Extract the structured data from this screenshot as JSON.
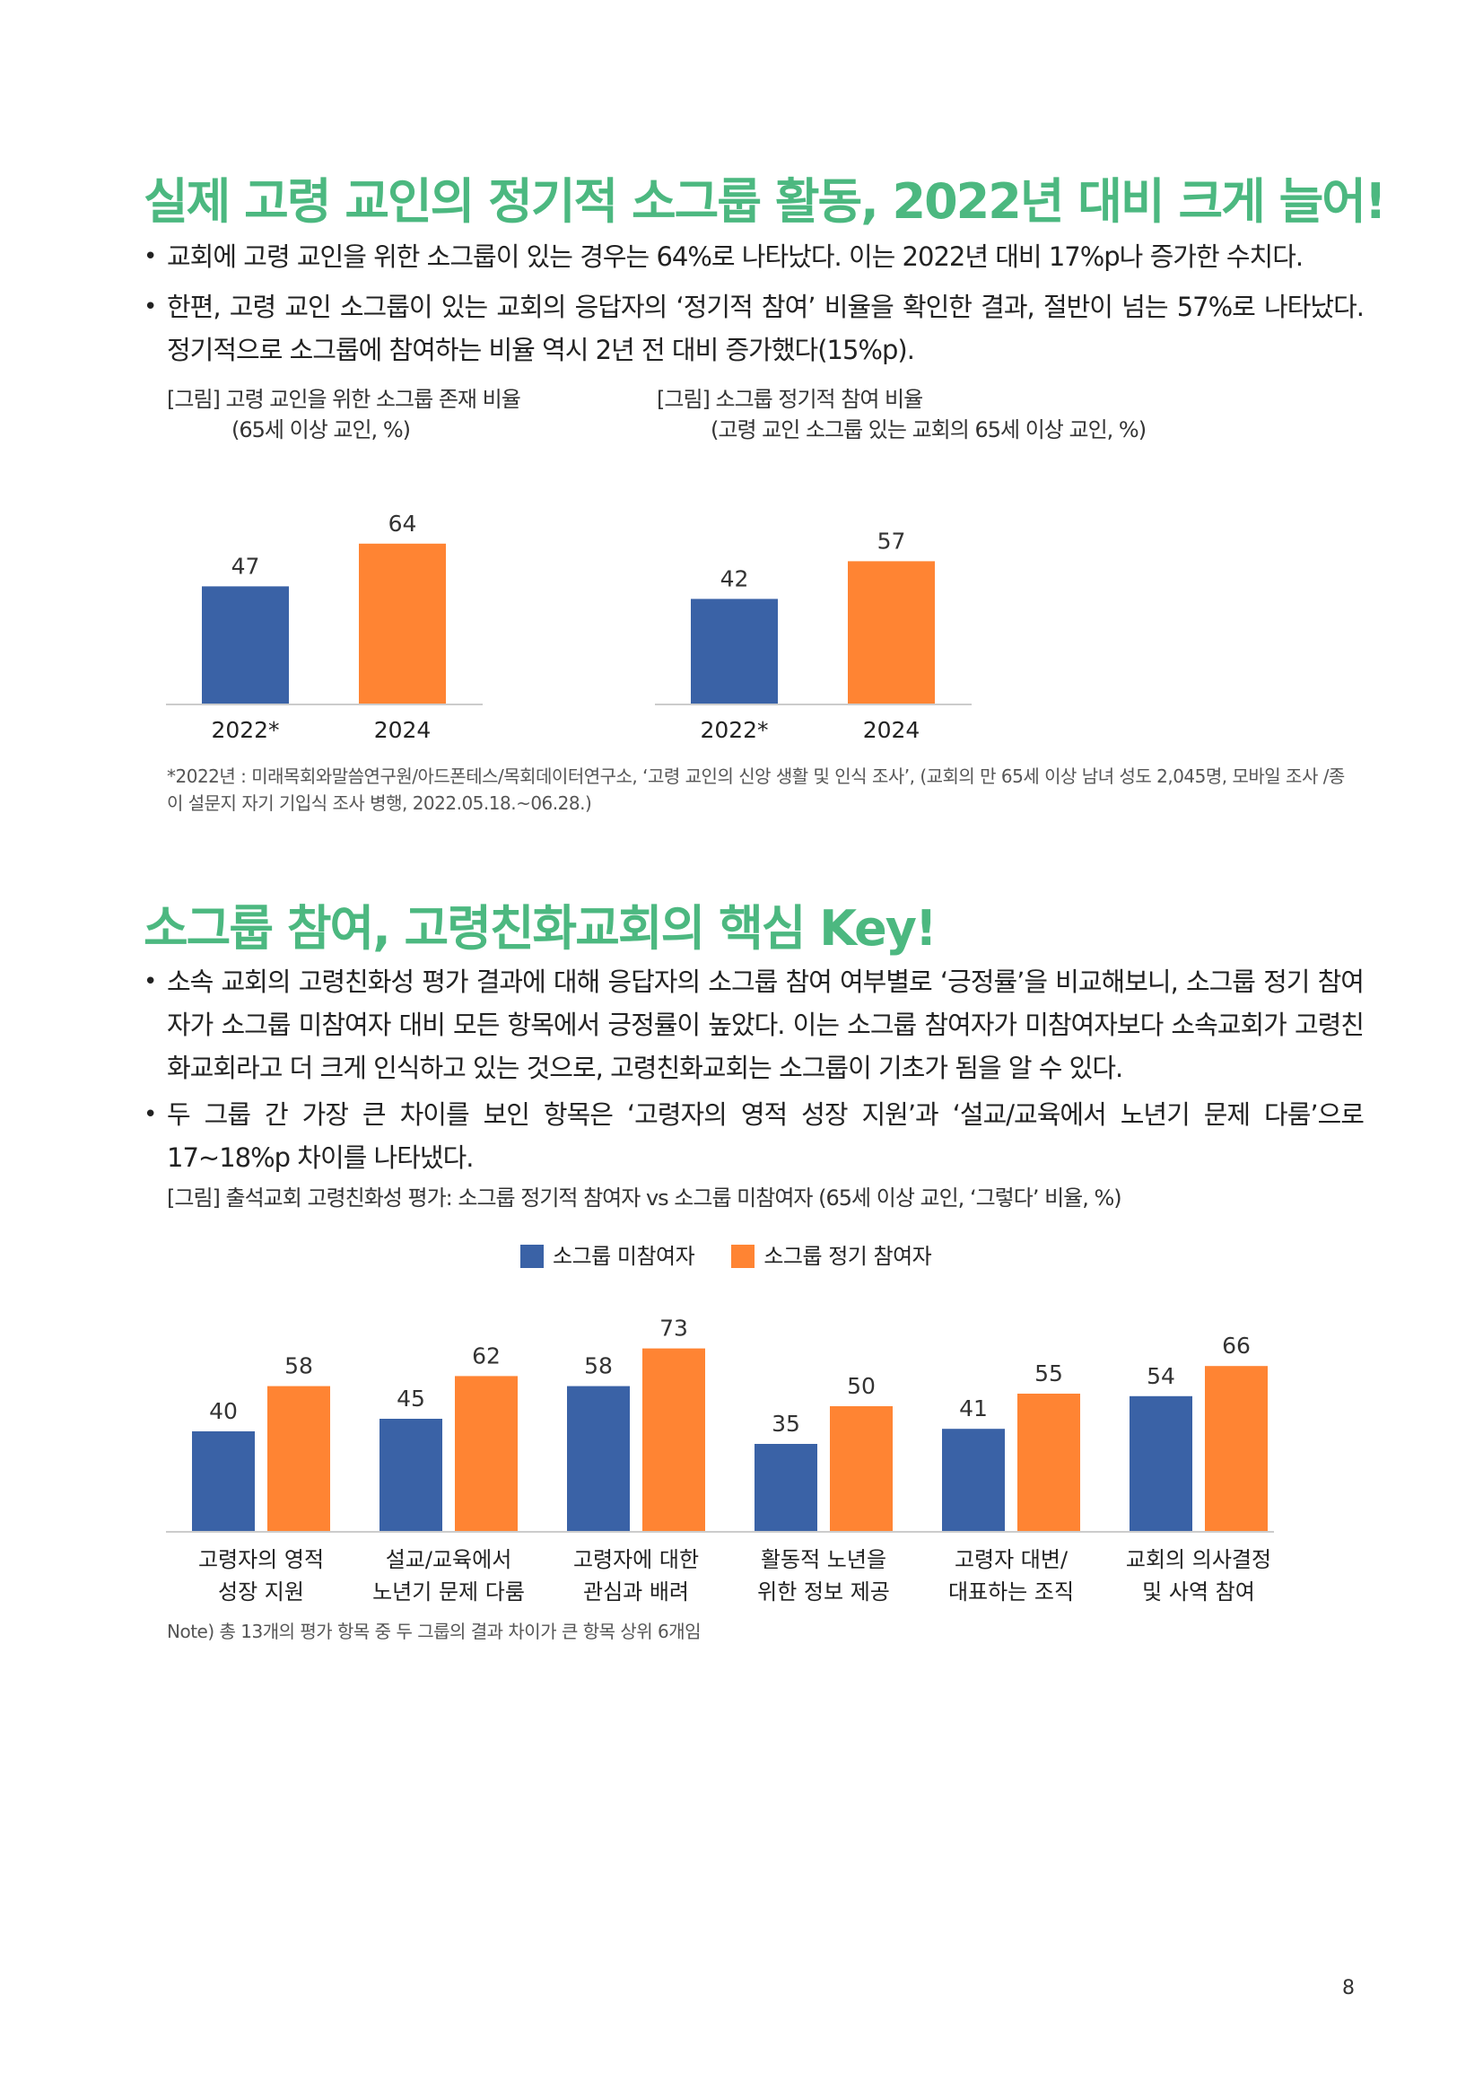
{
  "section1": {
    "heading": "실제 고령 교인의 정기적 소그룹 활동, 2022년 대비 크게 늘어!",
    "bullets": [
      "교회에 고령 교인을 위한 소그룹이 있는 경우는 64%로 나타났다. 이는 2022년 대비 17%p나 증가한 수치다.",
      "한편, 고령 교인 소그룹이 있는 교회의 응답자의 ‘정기적 참여’ 비율을 확인한 결과, 절반이 넘는 57%로 나타났다. 정기적으로 소그룹에 참여하는 비율 역시 2년 전 대비 증가했다(15%p)."
    ],
    "figure1": {
      "caption": "[그림] 고령 교인을 위한 소그룹 존재 비율",
      "subcaption": "(65세 이상 교인, %)"
    },
    "figure2": {
      "caption": "[그림] 소그룹 정기적 참여 비율",
      "subcaption": "(고령 교인 소그룹 있는 교회의 65세 이상 교인, %)"
    },
    "footnote": "*2022년 : 미래목회와말씀연구원/아드폰테스/목회데이터연구소, ‘고령 교인의 신앙 생활 및 인식 조사’, (교회의 만 65세 이상 남녀 성도 2,045명, 모바일 조사 /종이 설문지 자기 기입식 조사 병행, 2022.05.18.~06.28.)"
  },
  "section2": {
    "heading": "소그룹 참여, 고령친화교회의 핵심 Key!",
    "bullets": [
      "소속 교회의 고령친화성 평가 결과에 대해 응답자의 소그룹 참여 여부별로 ‘긍정률’을 비교해보니, 소그룹 정기 참여자가 소그룹 미참여자 대비 모든 항목에서 긍정률이 높았다. 이는 소그룹 참여자가 미참여자보다 소속교회가 고령친화교회라고 더 크게 인식하고 있는 것으로, 고령친화교회는 소그룹이 기초가 됨을 알 수 있다.",
      "두 그룹 간 가장 큰 차이를 보인 항목은 ‘고령자의 영적 성장 지원’과 ‘설교/교육에서 노년기 문제 다룸’으로 17~18%p 차이를 나타냈다."
    ],
    "figure3": {
      "caption": "[그림] 출석교회 고령친화성 평가: 소그룹 정기적 참여자 vs 소그룹 미참여자 (65세 이상 교인, ‘그렇다’ 비율, %)"
    },
    "note": "Note) 총 13개의 평가 항목 중 두 그룹의 결과 차이가 큰 항목 상위 6개임"
  },
  "page_number": "8",
  "colors": {
    "blue": "#3a62a6",
    "orange": "#ff8433",
    "heading_green": "#4cb880"
  },
  "chart_data": [
    {
      "type": "bar",
      "title": "[그림] 고령 교인을 위한 소그룹 존재 비율",
      "subtitle": "(65세 이상 교인, %)",
      "categories": [
        "2022*",
        "2024"
      ],
      "values": [
        47,
        64
      ],
      "colors": [
        "#3a62a6",
        "#ff8433"
      ],
      "ylim": [
        0,
        100
      ],
      "grid": false
    },
    {
      "type": "bar",
      "title": "[그림] 소그룹 정기적 참여 비율",
      "subtitle": "(고령 교인 소그룹 있는 교회의 65세 이상 교인, %)",
      "categories": [
        "2022*",
        "2024"
      ],
      "values": [
        42,
        57
      ],
      "colors": [
        "#3a62a6",
        "#ff8433"
      ],
      "ylim": [
        0,
        100
      ],
      "grid": false
    },
    {
      "type": "bar",
      "title": "[그림] 출석교회 고령친화성 평가: 소그룹 정기적 참여자 vs 소그룹 미참여자 (65세 이상 교인, ‘그렇다’ 비율, %)",
      "categories": [
        [
          "고령자의 영적",
          "성장 지원"
        ],
        [
          "설교/교육에서",
          "노년기 문제 다룸"
        ],
        [
          "고령자에 대한",
          "관심과 배려"
        ],
        [
          "활동적 노년을",
          "위한 정보 제공"
        ],
        [
          "고령자 대변/",
          "대표하는 조직"
        ],
        [
          "교회의 의사결정",
          "및 사역 참여"
        ]
      ],
      "series": [
        {
          "name": "소그룹 미참여자",
          "values": [
            40,
            45,
            58,
            35,
            41,
            54
          ],
          "color": "#3a62a6"
        },
        {
          "name": "소그룹 정기 참여자",
          "values": [
            58,
            62,
            73,
            50,
            55,
            66
          ],
          "color": "#ff8433"
        }
      ],
      "legend": "top-center",
      "ylim": [
        0,
        100
      ],
      "grid": false
    }
  ]
}
